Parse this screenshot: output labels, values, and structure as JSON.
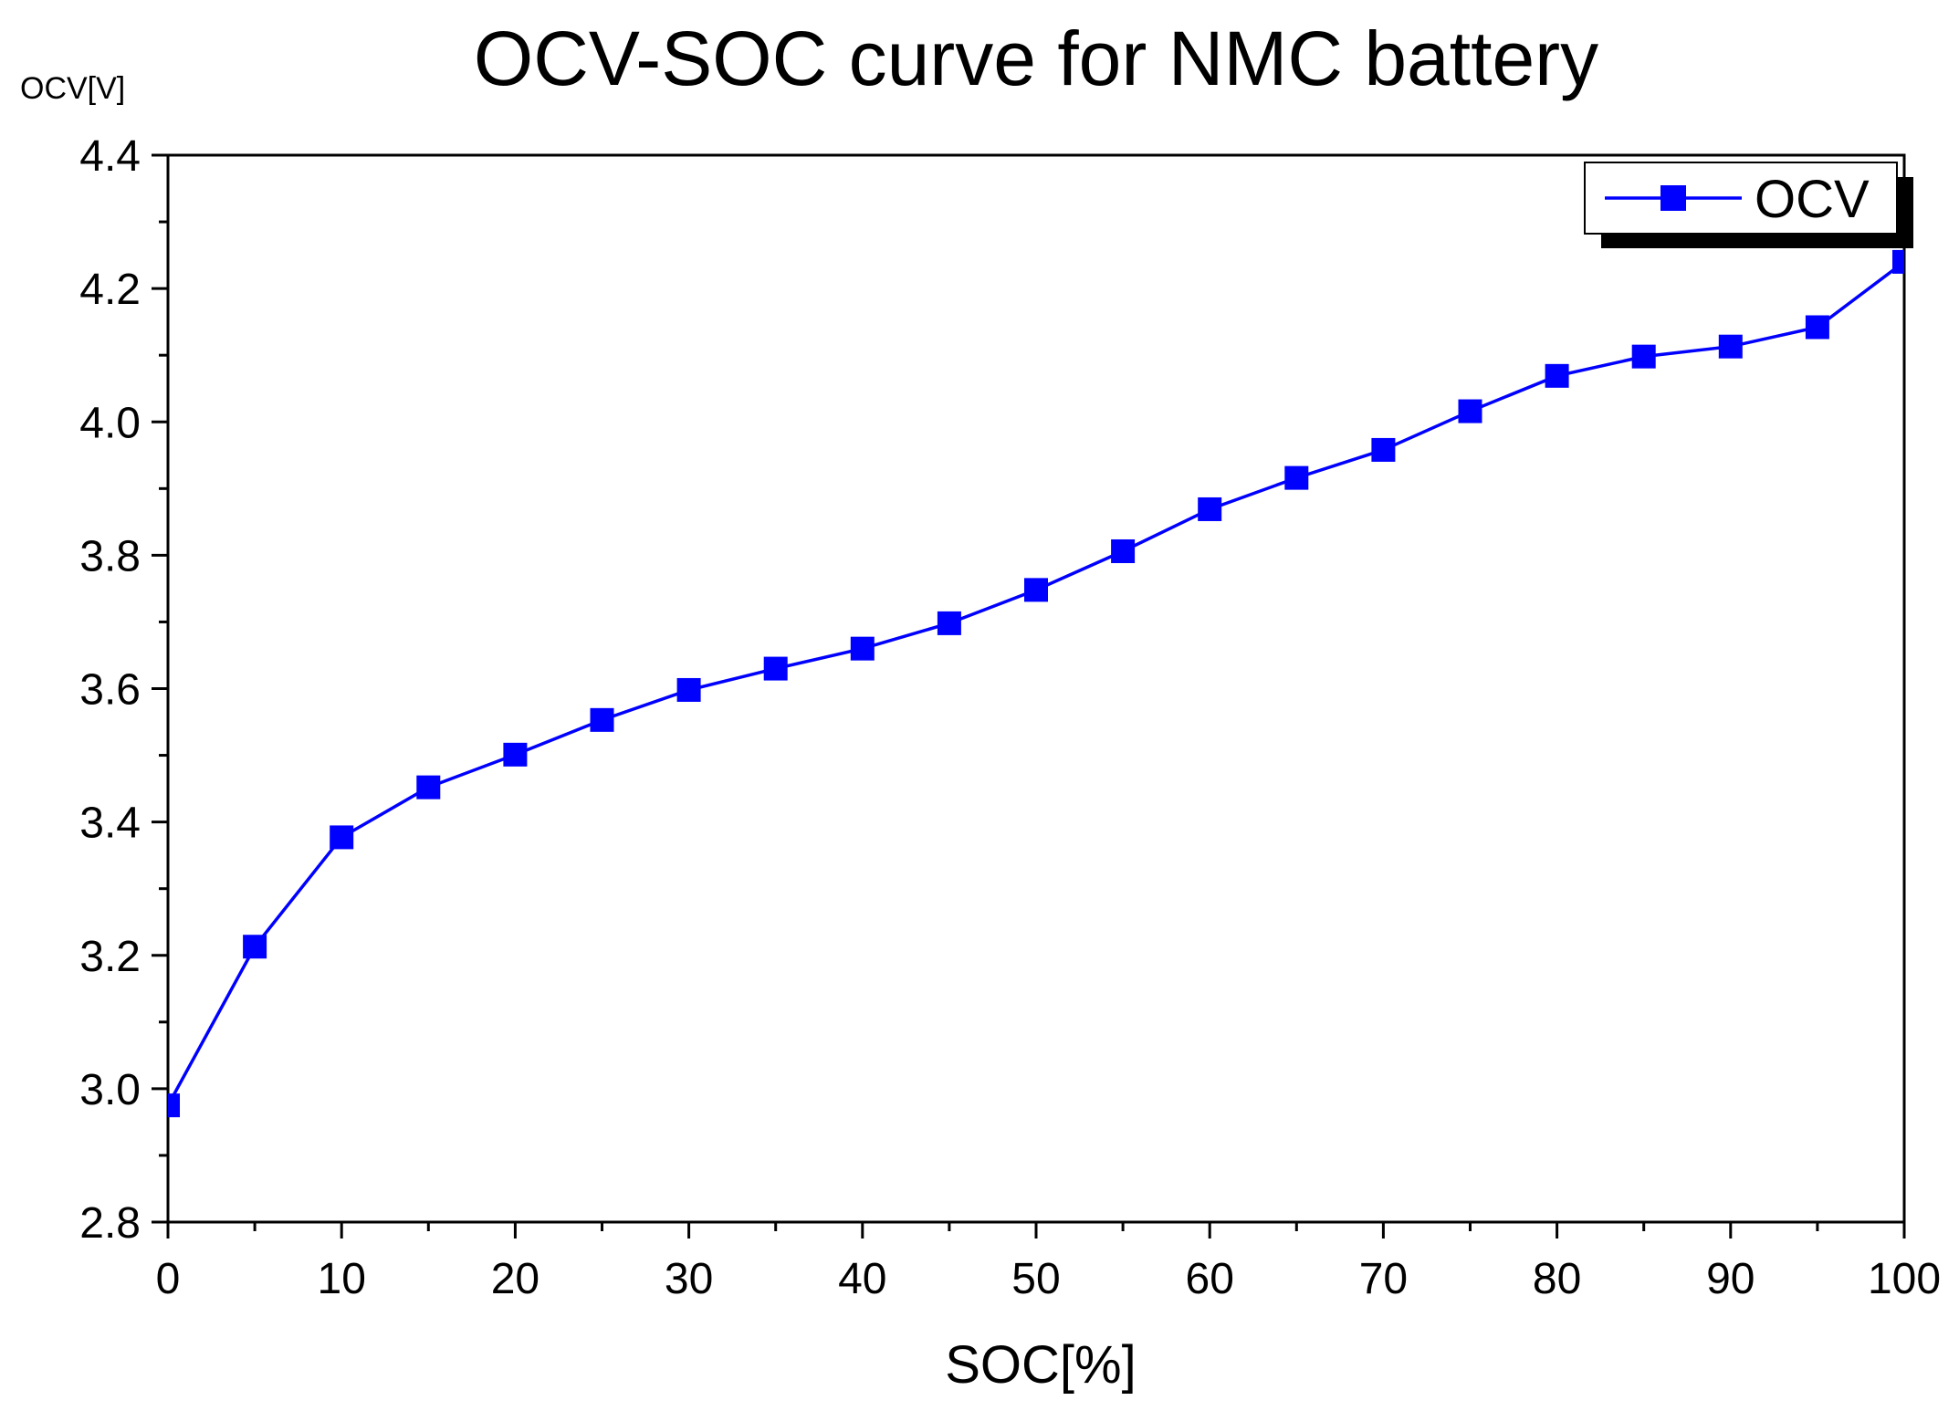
{
  "chart_data": {
    "type": "line",
    "title": "OCV-SOC curve for NMC battery",
    "xlabel": "SOC[%]",
    "ylabel": "OCV[V]",
    "xlim": [
      0,
      100
    ],
    "ylim": [
      2.8,
      4.4
    ],
    "x_ticks": [
      0,
      10,
      20,
      30,
      40,
      50,
      60,
      70,
      80,
      90,
      100
    ],
    "y_ticks": [
      2.8,
      3.0,
      3.2,
      3.4,
      3.6,
      3.8,
      4.0,
      4.2,
      4.4
    ],
    "x_tick_labels": [
      "0",
      "10",
      "20",
      "30",
      "40",
      "50",
      "60",
      "70",
      "80",
      "90",
      "100"
    ],
    "y_tick_labels": [
      "2.8",
      "3.0",
      "3.2",
      "3.4",
      "3.6",
      "3.8",
      "4.0",
      "4.2",
      "4.4"
    ],
    "x_minor_step": 5,
    "y_minor_step": 0.1,
    "grid": false,
    "legend": "top-right",
    "series": [
      {
        "name": "OCV",
        "color": "#0000ff",
        "marker": "square",
        "x": [
          0,
          5,
          10,
          15,
          20,
          25,
          30,
          35,
          40,
          45,
          50,
          55,
          60,
          65,
          70,
          75,
          80,
          85,
          90,
          95,
          100
        ],
        "y": [
          2.975,
          3.213,
          3.377,
          3.452,
          3.501,
          3.553,
          3.598,
          3.63,
          3.66,
          3.698,
          3.748,
          3.806,
          3.869,
          3.916,
          3.958,
          4.016,
          4.069,
          4.098,
          4.113,
          4.142,
          4.24
        ]
      }
    ]
  }
}
